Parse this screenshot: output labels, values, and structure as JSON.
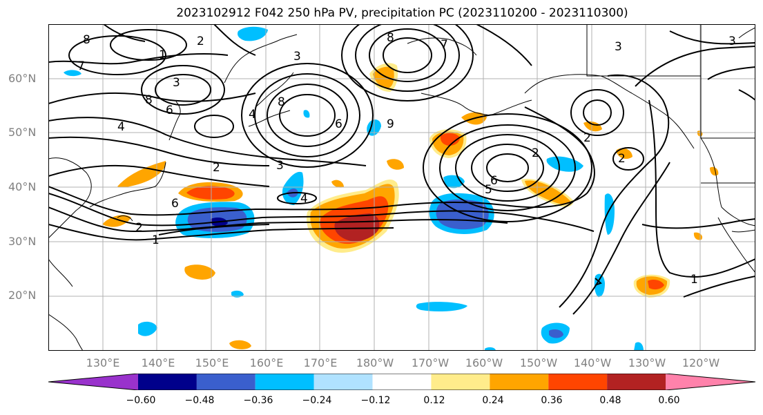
{
  "title": "2023102912 F042 250 hPa PV, precipitation PC (2023110200 - 2023110300)",
  "lat_labels": [
    "60°N",
    "50°N",
    "40°N",
    "30°N",
    "20°N"
  ],
  "lon_labels": [
    "130°E",
    "140°E",
    "150°E",
    "160°E",
    "170°E",
    "180°W",
    "170°W",
    "160°W",
    "150°W",
    "140°W",
    "130°W",
    "120°W"
  ],
  "contour_labels": [
    "8",
    "7",
    "1",
    "2",
    "3",
    "8",
    "4",
    "2",
    "6",
    "2",
    "1",
    "6",
    "4",
    "8",
    "3",
    "9",
    "6",
    "4",
    "7",
    "8",
    "6",
    "5",
    "3",
    "3",
    "2",
    "1",
    "2",
    "2",
    "3"
  ],
  "colorbar": {
    "colors": [
      "#9932cc",
      "#00008b",
      "#3a5fcd",
      "#00bfff",
      "#b0e2ff",
      "#ffffff",
      "#ffec8b",
      "#ffa500",
      "#ff4500",
      "#b22222",
      "#ff82ab"
    ],
    "tick_labels": [
      "−0.60",
      "−0.48",
      "−0.36",
      "−0.24",
      "−0.12",
      "0.12",
      "0.24",
      "0.36",
      "0.48",
      "0.60"
    ]
  },
  "colors": {
    "grid": "#b0b0b0",
    "contour": "#000000",
    "label_gray": "#808080"
  }
}
